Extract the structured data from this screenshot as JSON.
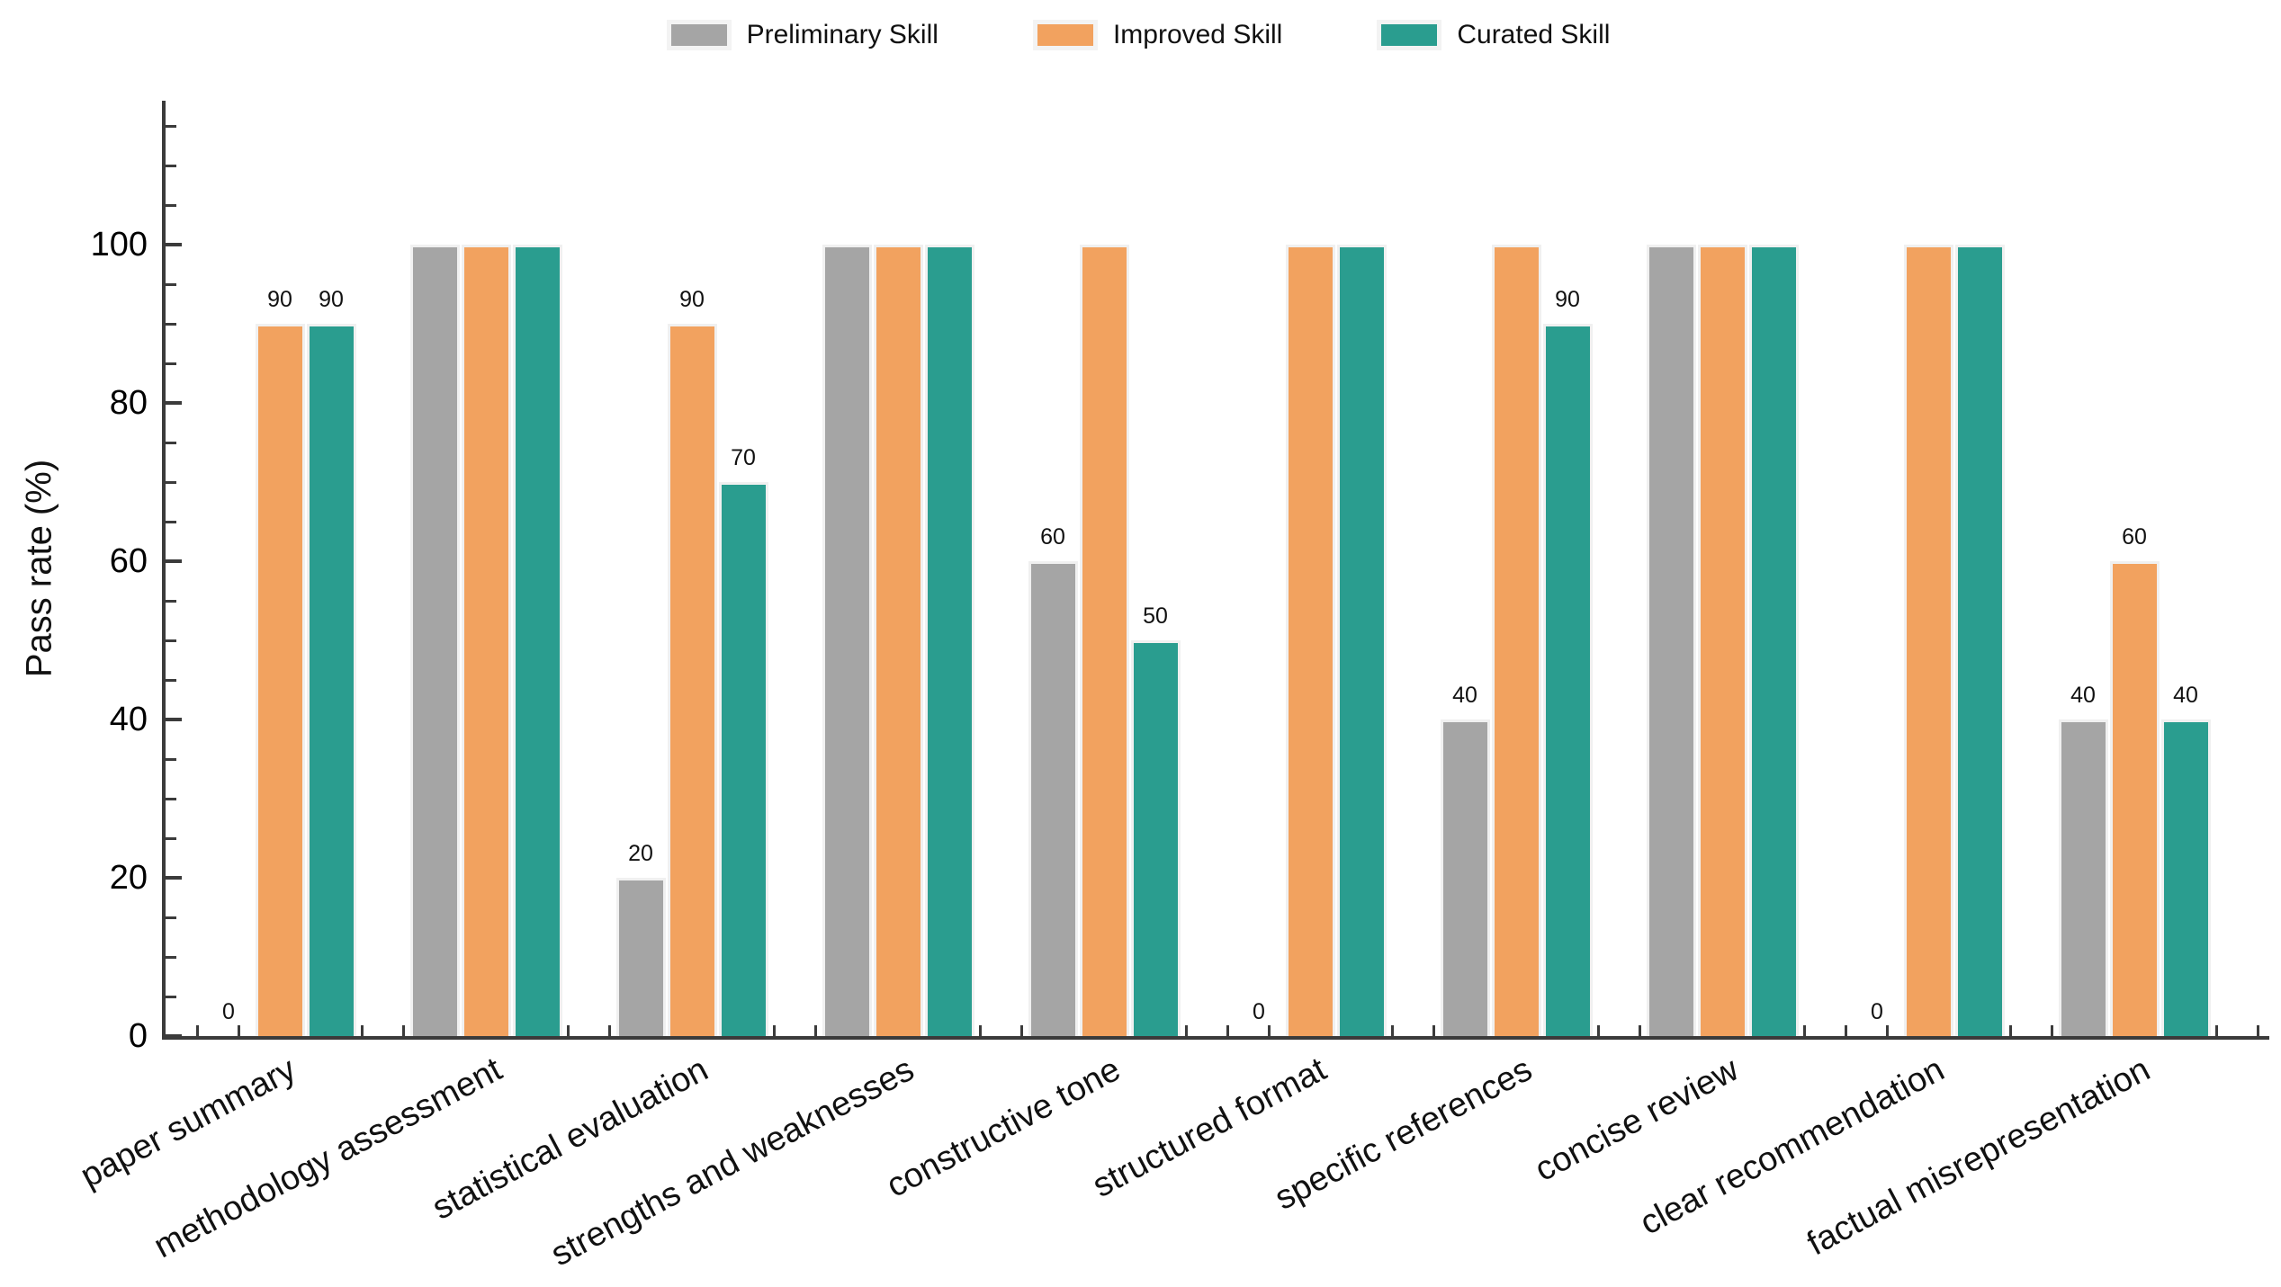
{
  "chart_data": {
    "type": "bar",
    "title": "",
    "xlabel": "",
    "ylabel": "Pass rate (%)",
    "categories": [
      "paper summary",
      "methodology assessment",
      "statistical evaluation",
      "strengths and weaknesses",
      "constructive tone",
      "structured format",
      "specific references",
      "concise review",
      "clear recommendation",
      "factual misrepresentation"
    ],
    "series": [
      {
        "name": "Preliminary Skill",
        "color": "#a5a5a5",
        "values": [
          0,
          100,
          20,
          100,
          60,
          0,
          40,
          100,
          0,
          40
        ]
      },
      {
        "name": "Improved Skill",
        "color": "#f2a25f",
        "values": [
          90,
          100,
          90,
          100,
          100,
          100,
          100,
          100,
          100,
          60
        ]
      },
      {
        "name": "Curated Skill",
        "color": "#2a9d8f",
        "values": [
          90,
          100,
          70,
          100,
          50,
          100,
          90,
          100,
          100,
          40
        ]
      }
    ],
    "y_ticks": [
      0,
      20,
      40,
      60,
      80,
      100
    ],
    "ylim": [
      0,
      118
    ],
    "grid": false,
    "legend_position": "top center",
    "value_labels": "shown above bars with value below 100",
    "value_label_threshold": 100
  },
  "style": {
    "axis_color": "#3b3b3b",
    "bar_edge_color": "#f0f0f0",
    "text_color": "#000000",
    "background": "#ffffff"
  }
}
